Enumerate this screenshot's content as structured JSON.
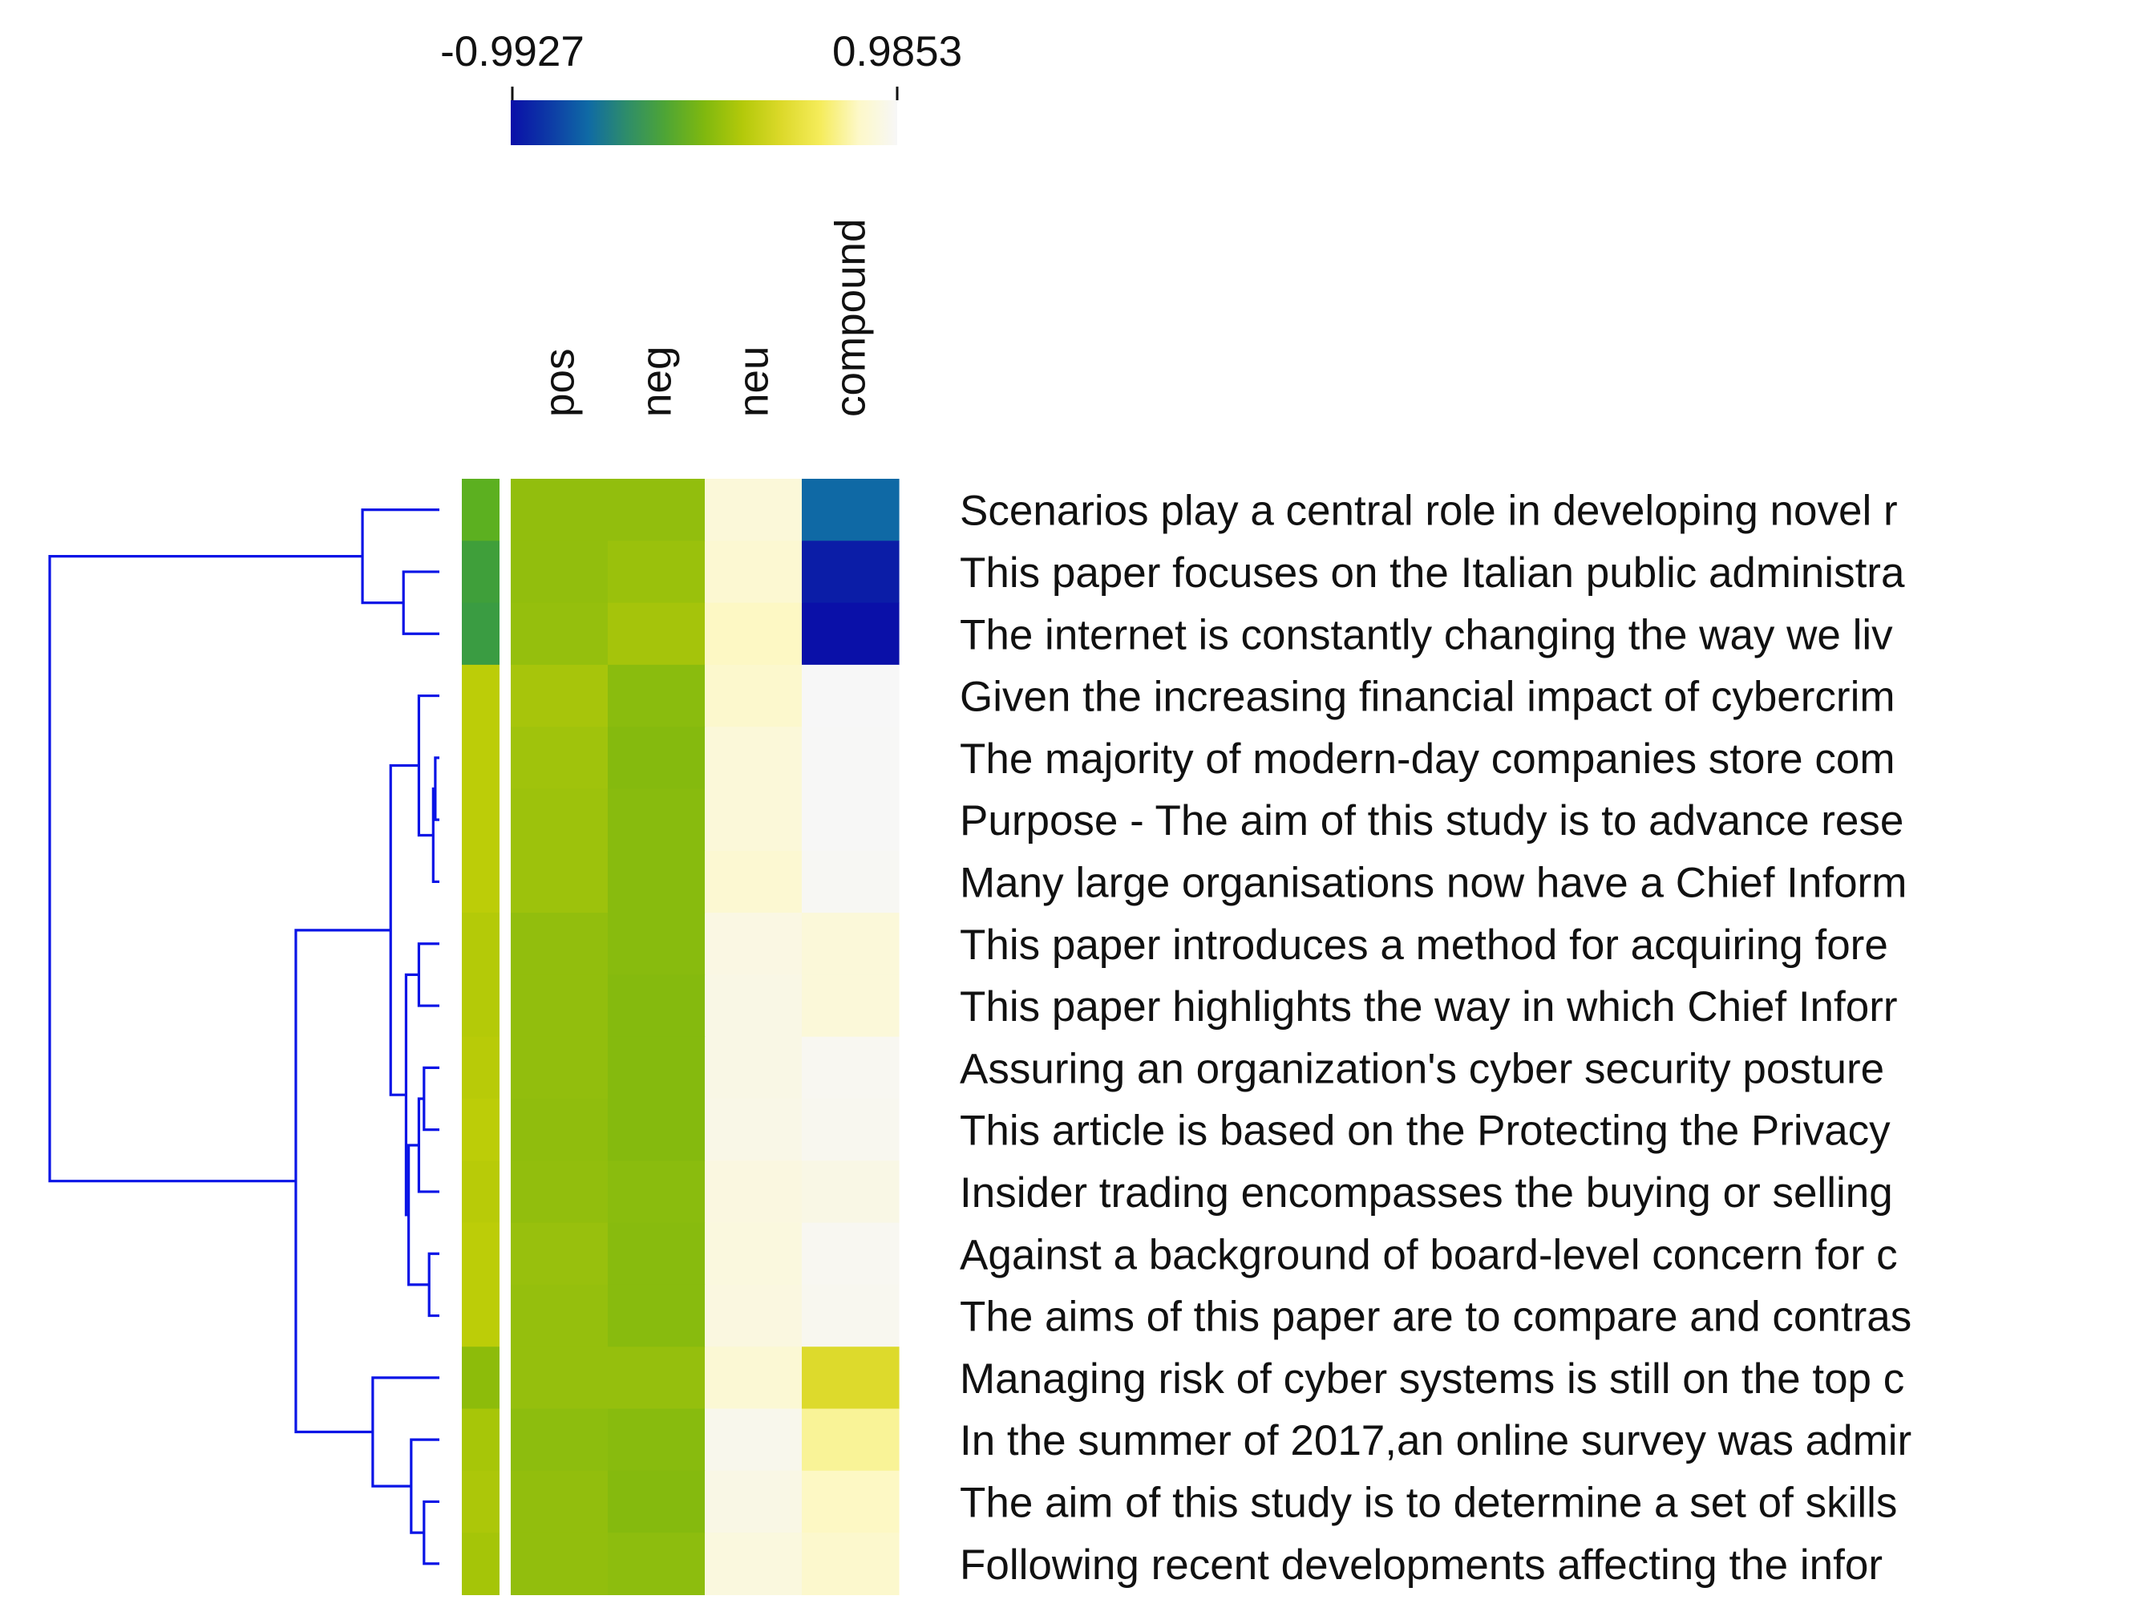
{
  "chart_data": {
    "type": "heatmap",
    "title": "",
    "columns": [
      "pos",
      "neg",
      "neu",
      "compound"
    ],
    "rows": [
      "Scenarios play a central role in developing novel r",
      "This paper focuses on the Italian public administra",
      "The internet is constantly changing the way we liv",
      "Given the increasing financial impact of cybercrim",
      "The majority of modern-day companies store com",
      "Purpose - The aim of this study is to advance rese",
      "Many large organisations now have a Chief Inform",
      "This paper introduces a method for acquiring fore",
      "This paper highlights the way in which Chief Inforr",
      "Assuring an organization's cyber security posture",
      "This article is based on the Protecting the Privacy",
      "Insider trading encompasses the buying or selling",
      "Against a background of board-level concern for c",
      "The aims of this paper are to compare and contras",
      "Managing risk of cyber systems is still on the top c",
      "In the summer of 2017,an online survey was admir",
      "The aim of this study is to determine a set of skills",
      "Following recent developments affecting the infor"
    ],
    "values": [
      [
        0.07,
        0.07,
        0.86,
        -0.6
      ],
      [
        0.07,
        0.1,
        0.83,
        -0.93
      ],
      [
        0.08,
        0.14,
        0.78,
        -0.99
      ],
      [
        0.15,
        0.04,
        0.81,
        0.985
      ],
      [
        0.12,
        0.02,
        0.86,
        0.98
      ],
      [
        0.11,
        0.03,
        0.86,
        0.98
      ],
      [
        0.11,
        0.03,
        0.83,
        0.97
      ],
      [
        0.07,
        0.03,
        0.9,
        0.86
      ],
      [
        0.07,
        0.02,
        0.91,
        0.86
      ],
      [
        0.07,
        0.02,
        0.91,
        0.96
      ],
      [
        0.06,
        0.02,
        0.92,
        0.95
      ],
      [
        0.07,
        0.04,
        0.89,
        0.91
      ],
      [
        0.09,
        0.03,
        0.88,
        0.96
      ],
      [
        0.08,
        0.03,
        0.89,
        0.95
      ],
      [
        0.08,
        0.08,
        0.84,
        0.4
      ],
      [
        0.05,
        0.03,
        0.94,
        0.7
      ],
      [
        0.07,
        0.02,
        0.91,
        0.78
      ],
      [
        0.07,
        0.05,
        0.88,
        0.81
      ]
    ],
    "row_colors": [
      "#5cb020",
      "#3f9f3a",
      "#3a9c42",
      "#bccd08",
      "#bccd08",
      "#bccd08",
      "#bccd08",
      "#b4ca08",
      "#b4ca08",
      "#b8cb08",
      "#bccd08",
      "#b8cb08",
      "#bccd08",
      "#bccd08",
      "#8dbc0a",
      "#a7c608",
      "#acc709",
      "#a5c508"
    ],
    "dendrogram": {
      "color": "#0a14e6",
      "links": [
        [
          1,
          2,
          0.7
        ],
        [
          0,
          18,
          1.5
        ],
        [
          4,
          5,
          0.08
        ],
        [
          20,
          6,
          0.12
        ],
        [
          3,
          21,
          0.4
        ],
        [
          7,
          8,
          0.4
        ],
        [
          9,
          10,
          0.3
        ],
        [
          24,
          11,
          0.4
        ],
        [
          12,
          13,
          0.2
        ],
        [
          26,
          25,
          0.6
        ],
        [
          23,
          27,
          0.65
        ],
        [
          22,
          28,
          0.95
        ],
        [
          16,
          17,
          0.3
        ],
        [
          15,
          30,
          0.55
        ],
        [
          14,
          31,
          1.3
        ],
        [
          29,
          32,
          2.8
        ],
        [
          19,
          33,
          7.6
        ]
      ],
      "max_height": 7.6
    },
    "colorbar": {
      "min": -0.9927,
      "max": 0.9853,
      "min_label": "-0.9927",
      "max_label": "0.9853",
      "stops": [
        "#0a0fa8",
        "#0d3aa6",
        "#0f6aa5",
        "#2e8d6a",
        "#4ea535",
        "#7fb80f",
        "#b3c90a",
        "#dcd92a",
        "#f5ec5a",
        "#fdf8c8",
        "#f7f7f7"
      ]
    },
    "legend": "top"
  }
}
